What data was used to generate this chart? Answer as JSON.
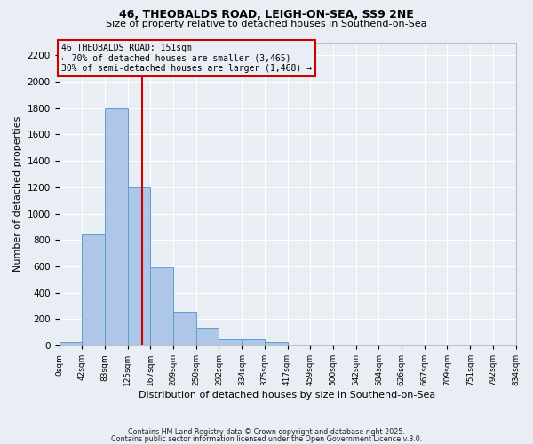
{
  "title1": "46, THEOBALDS ROAD, LEIGH-ON-SEA, SS9 2NE",
  "title2": "Size of property relative to detached houses in Southend-on-Sea",
  "xlabel": "Distribution of detached houses by size in Southend-on-Sea",
  "ylabel": "Number of detached properties",
  "bin_labels": [
    "0sqm",
    "42sqm",
    "83sqm",
    "125sqm",
    "167sqm",
    "209sqm",
    "250sqm",
    "292sqm",
    "334sqm",
    "375sqm",
    "417sqm",
    "459sqm",
    "500sqm",
    "542sqm",
    "584sqm",
    "626sqm",
    "667sqm",
    "709sqm",
    "751sqm",
    "792sqm",
    "834sqm"
  ],
  "bin_edges": [
    0,
    42,
    83,
    125,
    167,
    209,
    250,
    292,
    334,
    375,
    417,
    459,
    500,
    542,
    584,
    626,
    667,
    709,
    751,
    792,
    834
  ],
  "bar_heights": [
    25,
    845,
    1800,
    1200,
    595,
    255,
    135,
    45,
    45,
    25,
    5,
    0,
    0,
    0,
    0,
    0,
    0,
    0,
    0,
    0
  ],
  "bar_color": "#aec6e8",
  "bar_edge_color": "#5a9fd4",
  "property_line_x": 151,
  "property_line_color": "#cc0000",
  "ylim": [
    0,
    2300
  ],
  "yticks": [
    0,
    200,
    400,
    600,
    800,
    1000,
    1200,
    1400,
    1600,
    1800,
    2000,
    2200
  ],
  "annotation_text": "46 THEOBALDS ROAD: 151sqm\n← 70% of detached houses are smaller (3,465)\n30% of semi-detached houses are larger (1,468) →",
  "annotation_box_color": "#cc0000",
  "footnote1": "Contains HM Land Registry data © Crown copyright and database right 2025.",
  "footnote2": "Contains public sector information licensed under the Open Government Licence v.3.0.",
  "bg_color": "#e8eef4",
  "grid_color": "#ffffff"
}
